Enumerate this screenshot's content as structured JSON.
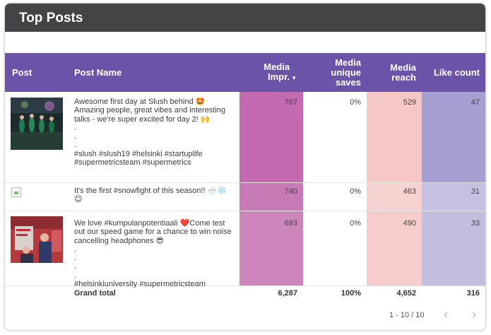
{
  "card": {
    "title": "Top Posts"
  },
  "table": {
    "headers": {
      "post": "Post",
      "post_name": "Post Name",
      "media_impr": "Media Impr.",
      "media_unique_saves": "Media unique saves",
      "media_reach": "Media reach",
      "like_count": "Like count"
    },
    "sort_indicator": "▼",
    "rows": [
      {
        "text": "Awesome first day at Slush behind 🤩\nAmazing people, great vibes and interesting talks - we're super excited for day 2! 🙌\n.\n.\n.\n#slush #slush19 #helsinki #startuplife #supermetricsteam #supermetrics",
        "impr": "787",
        "saves": "0%",
        "reach": "529",
        "likes": "47"
      },
      {
        "text": "It's the first #snowfight of this season!! 🌨️❄️😊",
        "impr": "740",
        "saves": "0%",
        "reach": "463",
        "likes": "31"
      },
      {
        "text": "We love #kumpulanpotentiaali ❤️Come test out our speed game for a chance to win noise cancelling headphones 😎\n.\n.\n.\n.\n#helsinkiuniversity #supermetricsteam",
        "impr": "693",
        "saves": "0%",
        "reach": "490",
        "likes": "33"
      }
    ],
    "grand_total": {
      "label": "Grand total",
      "impr": "6,287",
      "saves": "100%",
      "reach": "4,652",
      "likes": "316"
    }
  },
  "pagination": {
    "range": "1 - 10 / 10",
    "prev_icon": "chevron-left-icon",
    "next_icon": "chevron-right-icon"
  },
  "colors": {
    "title_bg": "#444345",
    "header_bg": "#6a53a8",
    "impr_col": "#c46ab0",
    "reach_col": "#f5c7c5",
    "likes_col": "#a79fd1"
  }
}
